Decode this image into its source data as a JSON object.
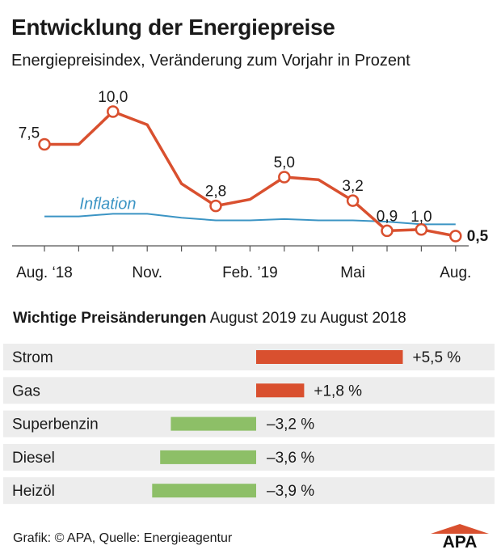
{
  "title": "Entwicklung der Energiepreise",
  "subtitle": "Energiepreisindex, Veränderung zum Vorjahr in Prozent",
  "chart_data": [
    {
      "type": "line",
      "title": "Entwicklung der Energiepreise",
      "subtitle": "Energiepreisindex, Veränderung zum Vorjahr in Prozent",
      "x": [
        "Aug. 2018",
        "Sep. 2018",
        "Okt. 2018",
        "Nov. 2018",
        "Dez. 2018",
        "Jan. 2019",
        "Feb. 2019",
        "Mär. 2019",
        "Apr. 2019",
        "Mai 2019",
        "Jun. 2019",
        "Jul. 2019",
        "Aug. 2019"
      ],
      "x_tick_labels": [
        "Aug. ‘18",
        "Nov.",
        "Feb. ’19",
        "Mai",
        "Aug."
      ],
      "x_tick_indices": [
        0,
        3,
        6,
        9,
        12
      ],
      "ylim": [
        0,
        10
      ],
      "series": [
        {
          "name": "Energiepreisindex",
          "color": "#d9502f",
          "values": [
            7.5,
            7.5,
            10.0,
            9.0,
            4.5,
            2.8,
            3.3,
            5.0,
            4.8,
            3.2,
            0.9,
            1.0,
            0.5
          ],
          "labeled": [
            {
              "index": 0,
              "label": "7,5"
            },
            {
              "index": 2,
              "label": "10,0"
            },
            {
              "index": 5,
              "label": "2,8"
            },
            {
              "index": 7,
              "label": "5,0"
            },
            {
              "index": 9,
              "label": "3,2"
            },
            {
              "index": 10,
              "label": "0,9"
            },
            {
              "index": 11,
              "label": "1,0"
            },
            {
              "index": 12,
              "label": "0,5"
            }
          ]
        },
        {
          "name": "Inflation",
          "label": "Inflation",
          "color": "#3b94c4",
          "values": [
            2.0,
            2.0,
            2.2,
            2.2,
            1.9,
            1.7,
            1.7,
            1.8,
            1.7,
            1.7,
            1.6,
            1.4,
            1.4
          ]
        }
      ]
    },
    {
      "type": "bar",
      "orientation": "horizontal",
      "title_bold": "Wichtige Preisänderungen",
      "title_rest": "August 2019 zu August 2018",
      "categories": [
        "Strom",
        "Gas",
        "Superbenzin",
        "Diesel",
        "Heizöl"
      ],
      "values": [
        5.5,
        1.8,
        -3.2,
        -3.6,
        -3.9
      ],
      "value_labels": [
        "+5,5 %",
        "+1,8 %",
        "–3,2 %",
        "–3,6 %",
        "–3,9 %"
      ],
      "positive_color": "#d9502f",
      "negative_color": "#8dbf67",
      "row_background": "#ededed"
    }
  ],
  "footer": "Grafik: © APA, Quelle: Energieagentur",
  "logo_text": "APA",
  "logo_color": "#d9502f"
}
